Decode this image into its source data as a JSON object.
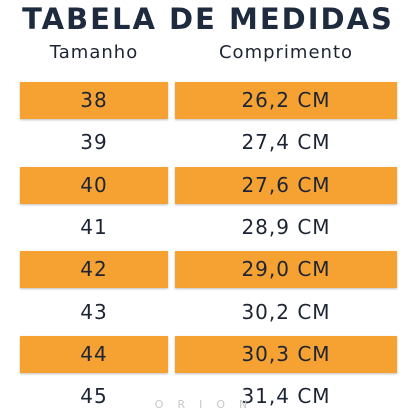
{
  "title": "TABELA DE MEDIDAS",
  "headers": [
    "Tamanho",
    "Comprimento"
  ],
  "rows": [
    [
      "38",
      "26,2 CM"
    ],
    [
      "39",
      "27,4 CM"
    ],
    [
      "40",
      "27,6 CM"
    ],
    [
      "41",
      "28,9 CM"
    ],
    [
      "42",
      "29,0 CM"
    ],
    [
      "43",
      "30,2 CM"
    ],
    [
      "44",
      "30,3 CM"
    ],
    [
      "45",
      "31,4 CM"
    ]
  ],
  "watermark": "ORION"
}
